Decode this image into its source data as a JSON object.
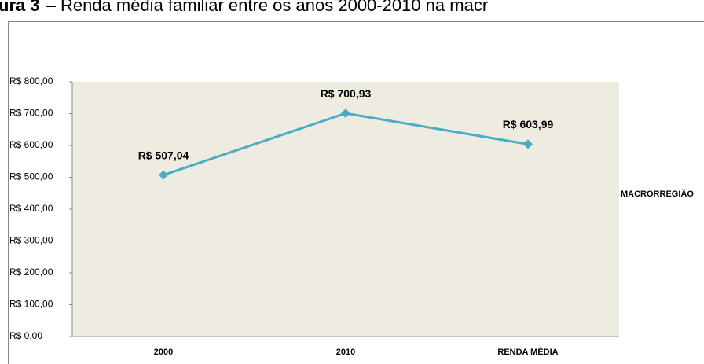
{
  "chart_data": {
    "type": "line",
    "label": "ura 3",
    "title": "– Renda média familiar entre os anos 2000-2010 na macr",
    "categories": [
      "2000",
      "2010",
      "RENDA MÉDIA"
    ],
    "series": [
      {
        "name": "MACRORREGIÃO",
        "color": "#4bacc6",
        "values": [
          507.04,
          700.93,
          603.99
        ],
        "value_labels": [
          "R$ 507,04",
          "R$ 700,93",
          "R$ 603,99"
        ]
      }
    ],
    "ylim": [
      0,
      800
    ],
    "yticks": [
      {
        "value": 0,
        "label": "R$ 0,00"
      },
      {
        "value": 100,
        "label": "R$ 100,00"
      },
      {
        "value": 200,
        "label": "R$ 200,00"
      },
      {
        "value": 300,
        "label": "R$ 300,00"
      },
      {
        "value": 400,
        "label": "R$ 400,00"
      },
      {
        "value": 500,
        "label": "R$ 500,00"
      },
      {
        "value": 600,
        "label": "R$ 600,00"
      },
      {
        "value": 700,
        "label": "R$ 700,00"
      },
      {
        "value": 800,
        "label": "R$ 800,00"
      }
    ],
    "legend": "right",
    "plot_background": "#eeece1"
  }
}
